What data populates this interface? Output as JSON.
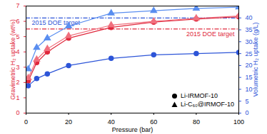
{
  "chart_data": {
    "type": "line",
    "x": [
      1,
      5,
      10,
      20,
      40,
      60,
      80,
      100
    ],
    "xlabel": "Pressure (bar)",
    "ylabel": "Gravimetric H₂ uptake (wt%)",
    "y2label": "Volumetric H₂ uptake (g/L)",
    "xlim": [
      0,
      100
    ],
    "xticks": [
      0,
      20,
      40,
      60,
      80,
      100
    ],
    "ylim": [
      0,
      7
    ],
    "yticks": [
      0,
      1,
      2,
      3,
      4,
      5,
      6,
      7
    ],
    "y2lim": [
      0,
      45
    ],
    "y2ticks": [
      0,
      5,
      10,
      15,
      20,
      25,
      30,
      35,
      40
    ],
    "grid": false,
    "legend": "bottom-right",
    "series": [
      {
        "name": "Li-IRMOF-10",
        "color": "#e0283c",
        "marker": "circle",
        "axis": "y",
        "values": [
          2.1,
          3.3,
          4.0,
          4.9,
          5.6,
          5.95,
          6.15,
          6.3
        ]
      },
      {
        "name": "Li-C₆₀@IRMOF-10",
        "color": "#f0707e",
        "marker": "triangle",
        "axis": "y",
        "values": [
          2.3,
          3.5,
          4.2,
          5.05,
          5.75,
          6.0,
          6.2,
          6.35
        ]
      },
      {
        "name": "Li-IRMOF-10",
        "color": "#2d55d8",
        "marker": "circle",
        "axis": "y2",
        "values": [
          11.5,
          14.5,
          16.5,
          20,
          23,
          24.5,
          25,
          25.5
        ]
      },
      {
        "name": "Li-C₆₀@IRMOF-10",
        "color": "#5a8ef0",
        "marker": "triangle",
        "axis": "y2",
        "values": [
          18.5,
          27.5,
          31.5,
          36.5,
          42,
          43,
          44,
          44.5
        ]
      }
    ],
    "reference_lines": [
      {
        "value": 5.5,
        "axis": "y",
        "label": "2015 DOE target",
        "color": "#e0283c",
        "line_style": "dashdot"
      },
      {
        "value": 40,
        "axis": "y2",
        "label": "2015 DOE target",
        "color": "#2d55d8",
        "line_style": "dashdot"
      }
    ]
  }
}
